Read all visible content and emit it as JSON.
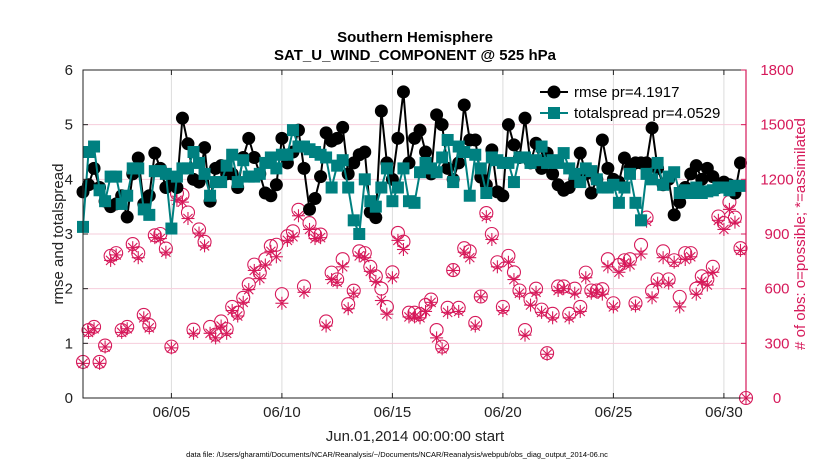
{
  "chart_data": {
    "type": "line",
    "title": "Southern Hemisphere",
    "subtitle": "SAT_U_WIND_COMPONENT @ 525 hPa",
    "xlabel": "Jun.01,2014 00:00:00 start",
    "ylabel": "rmse and totalspread",
    "y2label": "# of obs: o=possible; *=assimilated",
    "footer": "data file: /Users/gharamti/Documents/NCAR/Reanalysis/~/Documents/NCAR/Reanalysis/webpub/obs_diag_output_2014-06.nc",
    "xlim_days": [
      1,
      31
    ],
    "x_step_days": 0.25,
    "x_ticks": [
      {
        "day": 5,
        "label": "06/05"
      },
      {
        "day": 10,
        "label": "06/10"
      },
      {
        "day": 15,
        "label": "06/15"
      },
      {
        "day": 20,
        "label": "06/20"
      },
      {
        "day": 25,
        "label": "06/25"
      },
      {
        "day": 30,
        "label": "06/30"
      }
    ],
    "ylim": [
      0,
      6
    ],
    "y_ticks": [
      "0",
      "1",
      "2",
      "3",
      "4",
      "5",
      "6"
    ],
    "y2lim": [
      0,
      1800
    ],
    "y2_ticks": [
      "0",
      "300",
      "600",
      "900",
      "1200",
      "1500",
      "1800"
    ],
    "grid": true,
    "legend_position": "top-right",
    "colors": {
      "rmse": "#000000",
      "totalspread": "#008080",
      "obs": "#d6195a"
    },
    "series": [
      {
        "name": "rmse pr=4.1917",
        "marker": "circle",
        "values": [
          3.77,
          3.9,
          4.2,
          3.85,
          3.6,
          3.5,
          3.55,
          3.7,
          3.31,
          4.1,
          4.39,
          3.55,
          3.7,
          4.48,
          4.2,
          3.85,
          3.9,
          3.85,
          5.12,
          4.65,
          4.0,
          3.95,
          4.58,
          3.6,
          4.2,
          4.25,
          4.1,
          4.1,
          3.85,
          4.4,
          4.75,
          4.4,
          4.1,
          3.75,
          3.7,
          3.9,
          4.75,
          4.3,
          4.5,
          4.9,
          4.2,
          3.45,
          3.65,
          4.05,
          4.85,
          4.7,
          4.75,
          4.95,
          4.1,
          4.3,
          4.45,
          4.5,
          3.4,
          3.3,
          5.25,
          4.3,
          4.0,
          4.75,
          5.6,
          4.3,
          4.75,
          4.9,
          4.5,
          4.1,
          5.18,
          5.0,
          4.2,
          4.0,
          4.3,
          5.36,
          4.72,
          4.72,
          4.04,
          3.9,
          4.54,
          3.77,
          3.7,
          5.0,
          4.63,
          4.4,
          5.12,
          4.3,
          4.66,
          4.2,
          4.48,
          4.1,
          3.9,
          3.8,
          3.85,
          4.0,
          4.48,
          4.1,
          3.75,
          4.0,
          4.72,
          4.2,
          4.0,
          3.95,
          4.39,
          4.2,
          4.3,
          4.3,
          4.3,
          4.94,
          4.2,
          3.9,
          4.0,
          3.35,
          3.58,
          3.85,
          4.1,
          4.25,
          4.0,
          4.2,
          4.05,
          3.85,
          3.95,
          3.9,
          3.75,
          4.3
        ]
      },
      {
        "name": "totalspread pr=4.0529",
        "marker": "square",
        "values": [
          3.13,
          4.5,
          4.6,
          3.8,
          3.6,
          4.05,
          4.05,
          3.55,
          3.7,
          4.2,
          4.2,
          3.45,
          3.35,
          4.15,
          4.15,
          4.1,
          3.1,
          4.05,
          4.2,
          4.2,
          4.5,
          4.3,
          4.1,
          3.7,
          3.95,
          3.95,
          4.25,
          4.45,
          3.95,
          4.35,
          4.05,
          4.05,
          4.1,
          4.3,
          4.4,
          4.2,
          4.45,
          4.45,
          4.9,
          4.6,
          4.6,
          4.55,
          4.5,
          4.45,
          4.4,
          3.85,
          4.25,
          4.35,
          3.85,
          3.25,
          3.0,
          4.0,
          3.6,
          3.5,
          3.85,
          4.2,
          3.6,
          3.85,
          4.2,
          3.6,
          3.57,
          4.13,
          4.3,
          4.2,
          4.13,
          4.4,
          4.72,
          3.95,
          4.6,
          4.5,
          3.7,
          4.45,
          4.2,
          3.75,
          4.4,
          4.35,
          4.3,
          4.3,
          3.95,
          4.4,
          4.4,
          4.3,
          4.35,
          4.6,
          4.3,
          4.35,
          4.3,
          4.48,
          4.2,
          4.1,
          3.95,
          4.2,
          4.15,
          4.0,
          3.85,
          3.85,
          3.9,
          3.57,
          3.85,
          4.1,
          3.57,
          3.25,
          4.1,
          4.0,
          4.3,
          3.9,
          4.05,
          4.13,
          3.75,
          3.8,
          3.75,
          3.85,
          3.75,
          3.78,
          3.8,
          3.85,
          3.85,
          3.8,
          3.88,
          3.88
        ]
      },
      {
        "name": "obs possible",
        "marker": "open-circle",
        "axis": "right",
        "values": [
          198,
          373,
          390,
          198,
          288,
          780,
          795,
          373,
          390,
          845,
          795,
          456,
          400,
          893,
          900,
          820,
          282,
          1123,
          1115,
          1018,
          375,
          925,
          857,
          390,
          348,
          420,
          378,
          500,
          468,
          550,
          624,
          732,
          688,
          762,
          834,
          841,
          570,
          888,
          915,
          1033,
          612,
          960,
          897,
          897,
          420,
          688,
          651,
          762,
          515,
          589,
          805,
          795,
          720,
          668,
          600,
          500,
          690,
          906,
          858,
          468,
          468,
          460,
          510,
          540,
          373,
          282,
          495,
          702,
          495,
          822,
          805,
          412,
          557,
          1015,
          900,
          745,
          500,
          780,
          690,
          590,
          373,
          540,
          600,
          485,
          246,
          462,
          612,
          612,
          462,
          600,
          500,
          688,
          590,
          590,
          597,
          762,
          520,
          730,
          756,
          762,
          520,
          840,
          990,
          588,
          651,
          805,
          651,
          756,
          555,
          795,
          795,
          600,
          668,
          651,
          720,
          996,
          960,
          1075,
          990,
          822,
          0
        ]
      },
      {
        "name": "obs assimilated",
        "marker": "asterisk",
        "axis": "right",
        "values": [
          190,
          360,
          380,
          190,
          280,
          755,
          785,
          360,
          380,
          825,
          770,
          440,
          385,
          880,
          875,
          800,
          275,
          1085,
          1075,
          985,
          355,
          905,
          835,
          355,
          330,
          395,
          355,
          480,
          450,
          525,
          595,
          700,
          655,
          730,
          805,
          775,
          520,
          865,
          885,
          1000,
          580,
          925,
          875,
          880,
          395,
          650,
          635,
          720,
          490,
          575,
          780,
          770,
          695,
          640,
          535,
          460,
          660,
          865,
          815,
          445,
          445,
          440,
          475,
          525,
          330,
          270,
          470,
          700,
          475,
          800,
          770,
          395,
          555,
          995,
          870,
          720,
          480,
          745,
          650,
          575,
          345,
          510,
          580,
          470,
          240,
          440,
          590,
          600,
          440,
          575,
          475,
          660,
          575,
          580,
          570,
          720,
          500,
          690,
          740,
          730,
          505,
          790,
          970,
          550,
          630,
          770,
          630,
          745,
          500,
          760,
          775,
          570,
          640,
          620,
          690,
          975,
          925,
          1035,
          965,
          810,
          0
        ]
      }
    ]
  }
}
